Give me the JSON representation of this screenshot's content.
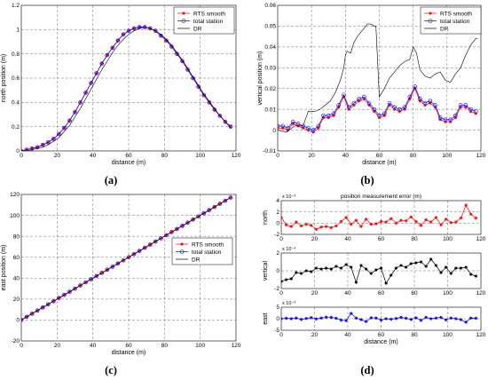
{
  "colors": {
    "rts": "#ff0000",
    "ts": "#0000ff",
    "dr": "#000000",
    "err_north": "#ff0000",
    "err_vertical": "#000000",
    "err_east": "#0000ff"
  },
  "legend_labels": {
    "rts": "RTS smooth",
    "ts": "total station",
    "dr": "DR"
  },
  "captions": {
    "a": "(a)",
    "b": "(b)",
    "c": "(c)",
    "d": "(d)"
  },
  "chart_data": [
    {
      "id": "a",
      "type": "line",
      "xlabel": "distance (m)",
      "ylabel": "north position (m)",
      "xlim": [
        0,
        120
      ],
      "ylim": [
        0,
        1.2
      ],
      "xticks": [
        0,
        20,
        40,
        60,
        80,
        100,
        120
      ],
      "yticks": [
        0,
        0.2,
        0.4,
        0.6,
        0.8,
        1,
        1.2
      ],
      "ytick_labels": [
        "0",
        "0.2",
        "0.4",
        "0.6",
        "0.8",
        "1",
        "1.2"
      ],
      "grid": true,
      "legend_position": "top-right",
      "x": [
        0,
        3,
        6,
        9,
        12,
        15,
        18,
        21,
        24,
        27,
        30,
        33,
        36,
        39,
        42,
        45,
        48,
        51,
        54,
        57,
        60,
        63,
        66,
        69,
        72,
        75,
        78,
        81,
        84,
        87,
        90,
        93,
        96,
        99,
        102,
        105,
        108,
        111,
        114,
        117
      ],
      "series": [
        {
          "key": "rts",
          "name": "RTS smooth",
          "marker": "star",
          "values": [
            0.0,
            0.01,
            0.02,
            0.03,
            0.05,
            0.07,
            0.1,
            0.14,
            0.19,
            0.25,
            0.32,
            0.4,
            0.48,
            0.56,
            0.64,
            0.72,
            0.79,
            0.85,
            0.91,
            0.96,
            0.99,
            1.01,
            1.02,
            1.02,
            1.01,
            0.99,
            0.95,
            0.91,
            0.86,
            0.8,
            0.74,
            0.67,
            0.6,
            0.53,
            0.46,
            0.4,
            0.34,
            0.29,
            0.24,
            0.2
          ]
        },
        {
          "key": "ts",
          "name": "total station",
          "marker": "circle",
          "values": [
            0.0,
            0.01,
            0.02,
            0.03,
            0.05,
            0.07,
            0.1,
            0.14,
            0.19,
            0.25,
            0.32,
            0.4,
            0.48,
            0.56,
            0.64,
            0.72,
            0.79,
            0.85,
            0.91,
            0.96,
            0.99,
            1.01,
            1.02,
            1.02,
            1.01,
            0.99,
            0.95,
            0.91,
            0.86,
            0.8,
            0.74,
            0.67,
            0.6,
            0.53,
            0.46,
            0.4,
            0.34,
            0.29,
            0.24,
            0.2
          ]
        },
        {
          "key": "dr",
          "name": "DR",
          "marker": "none",
          "values": [
            0.0,
            0.0,
            0.01,
            0.02,
            0.03,
            0.05,
            0.08,
            0.11,
            0.16,
            0.21,
            0.28,
            0.35,
            0.43,
            0.51,
            0.59,
            0.67,
            0.74,
            0.81,
            0.87,
            0.92,
            0.96,
            0.99,
            1.01,
            1.02,
            1.01,
            0.99,
            0.96,
            0.92,
            0.87,
            0.81,
            0.75,
            0.68,
            0.61,
            0.54,
            0.47,
            0.41,
            0.35,
            0.29,
            0.24,
            0.19
          ]
        }
      ]
    },
    {
      "id": "b",
      "type": "line",
      "xlabel": "distance (m)",
      "ylabel": "vertical position (m)",
      "xlim": [
        0,
        120
      ],
      "ylim": [
        -0.01,
        0.06
      ],
      "xticks": [
        0,
        20,
        40,
        60,
        80,
        100,
        120
      ],
      "yticks": [
        -0.01,
        0,
        0.01,
        0.02,
        0.03,
        0.04,
        0.05,
        0.06
      ],
      "ytick_labels": [
        "-0.01",
        "0",
        "0.01",
        "0.02",
        "0.03",
        "0.04",
        "0.05",
        "0.06"
      ],
      "grid": true,
      "legend_position": "top-right",
      "x": [
        0,
        3,
        6,
        9,
        12,
        15,
        18,
        21,
        24,
        27,
        30,
        33,
        36,
        39,
        42,
        45,
        48,
        51,
        54,
        57,
        60,
        63,
        66,
        69,
        72,
        75,
        78,
        81,
        84,
        87,
        90,
        93,
        96,
        99,
        102,
        105,
        108,
        111,
        114,
        117
      ],
      "series": [
        {
          "key": "rts",
          "name": "RTS smooth",
          "marker": "star",
          "values": [
            0.001,
            0.001,
            0.0,
            0.003,
            0.002,
            0.001,
            0.0,
            -0.001,
            0.001,
            0.006,
            0.006,
            0.007,
            0.011,
            0.016,
            0.01,
            0.012,
            0.014,
            0.015,
            0.012,
            0.009,
            0.006,
            0.007,
            0.012,
            0.01,
            0.009,
            0.01,
            0.015,
            0.02,
            0.014,
            0.012,
            0.013,
            0.011,
            0.005,
            0.004,
            0.004,
            0.006,
            0.011,
            0.011,
            0.009,
            0.008
          ]
        },
        {
          "key": "ts",
          "name": "total station",
          "marker": "circle",
          "values": [
            0.002,
            0.002,
            0.001,
            0.004,
            0.003,
            0.002,
            0.001,
            0.0,
            0.002,
            0.007,
            0.007,
            0.008,
            0.012,
            0.017,
            0.011,
            0.013,
            0.015,
            0.016,
            0.013,
            0.01,
            0.007,
            0.008,
            0.013,
            0.011,
            0.01,
            0.011,
            0.016,
            0.021,
            0.015,
            0.013,
            0.014,
            0.012,
            0.006,
            0.005,
            0.005,
            0.007,
            0.012,
            0.012,
            0.01,
            0.009
          ]
        },
        {
          "key": "dr",
          "name": "DR",
          "marker": "none",
          "x": [
            0,
            5,
            10,
            15,
            18,
            22,
            25,
            28,
            31,
            34,
            37,
            39,
            40,
            41,
            43,
            45,
            47,
            49,
            51,
            53,
            55,
            57,
            58,
            60,
            63,
            66,
            69,
            72,
            75,
            78,
            80,
            82,
            84,
            87,
            90,
            93,
            96,
            99,
            102,
            105,
            108,
            111,
            114,
            117,
            118
          ],
          "values": [
            0.0,
            -0.001,
            0.002,
            0.002,
            0.009,
            0.009,
            0.01,
            0.012,
            0.014,
            0.018,
            0.024,
            0.03,
            0.036,
            0.038,
            0.037,
            0.042,
            0.045,
            0.047,
            0.049,
            0.051,
            0.051,
            0.05,
            0.05,
            0.016,
            0.02,
            0.025,
            0.028,
            0.031,
            0.033,
            0.034,
            0.04,
            0.037,
            0.029,
            0.026,
            0.025,
            0.027,
            0.028,
            0.024,
            0.023,
            0.027,
            0.03,
            0.036,
            0.041,
            0.044,
            0.044
          ]
        }
      ]
    },
    {
      "id": "c",
      "type": "line",
      "xlabel": "distance (m)",
      "ylabel": "east position (m)",
      "xlim": [
        0,
        120
      ],
      "ylim": [
        -20,
        120
      ],
      "xticks": [
        0,
        20,
        40,
        60,
        80,
        100,
        120
      ],
      "yticks": [
        -20,
        0,
        20,
        40,
        60,
        80,
        100,
        120
      ],
      "ytick_labels": [
        "-20",
        "0",
        "20",
        "40",
        "60",
        "80",
        "100",
        "120"
      ],
      "grid": true,
      "legend_position": "center-right",
      "x": [
        0,
        3,
        6,
        9,
        12,
        15,
        18,
        21,
        24,
        27,
        30,
        33,
        36,
        39,
        42,
        45,
        48,
        51,
        54,
        57,
        60,
        63,
        66,
        69,
        72,
        75,
        78,
        81,
        84,
        87,
        90,
        93,
        96,
        99,
        102,
        105,
        108,
        111,
        114,
        117
      ],
      "series": [
        {
          "key": "rts",
          "name": "RTS smooth",
          "marker": "star",
          "values": [
            0,
            3,
            6,
            9,
            12,
            15,
            18,
            21,
            24,
            27,
            30,
            33,
            36,
            39,
            42,
            45,
            48,
            51,
            54,
            57,
            60,
            63,
            66,
            69,
            72,
            75,
            78,
            81,
            84,
            87,
            90,
            93,
            96,
            99,
            102,
            105,
            108,
            111,
            114,
            117
          ]
        },
        {
          "key": "ts",
          "name": "total station",
          "marker": "circle",
          "values": [
            0,
            3,
            6,
            9,
            12,
            15,
            18,
            21,
            24,
            27,
            30,
            33,
            36,
            39,
            42,
            45,
            48,
            51,
            54,
            57,
            60,
            63,
            66,
            69,
            72,
            75,
            78,
            81,
            84,
            87,
            90,
            93,
            96,
            99,
            102,
            105,
            108,
            111,
            114,
            117
          ]
        },
        {
          "key": "dr",
          "name": "DR",
          "marker": "none",
          "values": [
            0,
            3,
            6,
            9,
            12,
            15,
            18,
            21,
            24,
            27,
            30,
            33,
            36,
            39,
            42,
            45,
            48,
            51,
            54,
            57,
            60,
            63,
            66,
            69,
            72,
            75,
            78,
            81,
            84,
            87,
            90,
            93,
            96,
            99,
            102,
            105,
            108,
            111,
            114,
            117
          ]
        }
      ]
    },
    {
      "id": "d1",
      "type": "line",
      "title": "position measurement error (m)",
      "ylabel": "north",
      "exponent": "x 10⁻³",
      "xlim": [
        0,
        120
      ],
      "ylim": [
        -2,
        4
      ],
      "xticks": [
        0,
        20,
        40,
        60,
        80,
        100,
        120
      ],
      "yticks": [
        -2,
        0,
        2,
        4
      ],
      "ytick_labels": [
        "-2",
        "0",
        "2",
        "4"
      ],
      "grid": true,
      "color_key": "err_north",
      "x": [
        0,
        3,
        6,
        9,
        12,
        15,
        18,
        21,
        24,
        27,
        30,
        33,
        36,
        39,
        42,
        45,
        48,
        51,
        54,
        57,
        60,
        63,
        66,
        69,
        72,
        75,
        78,
        81,
        84,
        87,
        90,
        93,
        96,
        99,
        102,
        105,
        108,
        111,
        114,
        117
      ],
      "series": [
        {
          "name": "",
          "marker": "star",
          "values": [
            1.0,
            -0.3,
            -0.6,
            0.2,
            -0.5,
            -0.2,
            -0.4,
            -1.1,
            -0.7,
            -0.6,
            -0.8,
            -0.5,
            0.3,
            1.0,
            -0.2,
            0.5,
            -0.6,
            0.7,
            -0.2,
            -0.1,
            0.3,
            0.2,
            0.8,
            0.0,
            0.5,
            0.4,
            1.1,
            0.3,
            -0.4,
            0.6,
            0.2,
            1.0,
            -0.3,
            0.7,
            0.1,
            0.2,
            0.9,
            3.2,
            1.6,
            0.9
          ]
        }
      ]
    },
    {
      "id": "d2",
      "type": "line",
      "ylabel": "vertical",
      "exponent": "x 10⁻³",
      "xlim": [
        0,
        120
      ],
      "ylim": [
        -2,
        2
      ],
      "xticks": [
        0,
        20,
        40,
        60,
        80,
        100,
        120
      ],
      "yticks": [
        -2,
        0,
        2
      ],
      "ytick_labels": [
        "-2",
        "0",
        "2"
      ],
      "grid": true,
      "color_key": "err_vertical",
      "x": [
        0,
        3,
        6,
        9,
        12,
        15,
        18,
        21,
        24,
        27,
        30,
        33,
        36,
        39,
        42,
        45,
        48,
        51,
        54,
        57,
        60,
        63,
        66,
        69,
        72,
        75,
        78,
        81,
        84,
        87,
        90,
        93,
        96,
        99,
        102,
        105,
        108,
        111,
        114,
        117
      ],
      "series": [
        {
          "name": "",
          "marker": "star",
          "values": [
            -1.2,
            -1.0,
            -0.9,
            -0.2,
            -0.3,
            0.0,
            -0.1,
            0.3,
            0.2,
            0.3,
            0.2,
            0.5,
            0.3,
            0.7,
            0.4,
            -1.3,
            0.6,
            0.2,
            -0.3,
            0.1,
            0.3,
            -1.4,
            -0.5,
            0.3,
            0.6,
            0.4,
            0.8,
            0.9,
            1.0,
            0.5,
            1.3,
            0.6,
            -0.2,
            0.4,
            -0.3,
            0.3,
            0.3,
            0.4,
            -0.4,
            -0.6
          ]
        }
      ]
    },
    {
      "id": "d3",
      "type": "line",
      "ylabel": "east",
      "exponent": "x 10⁻³",
      "xlim": [
        0,
        120
      ],
      "ylim": [
        -5,
        5
      ],
      "xticks": [
        0,
        20,
        40,
        60,
        80,
        100,
        120
      ],
      "xtick_labels": [
        "0",
        "20",
        "40",
        "60",
        "80",
        "100",
        "120"
      ],
      "yticks": [
        -5,
        0,
        5
      ],
      "ytick_labels": [
        "-5",
        "0",
        "5"
      ],
      "xlabel": "distance (m)",
      "grid": true,
      "color_key": "err_east",
      "x": [
        0,
        3,
        6,
        9,
        12,
        15,
        18,
        21,
        24,
        27,
        30,
        33,
        36,
        39,
        42,
        45,
        48,
        51,
        54,
        57,
        60,
        63,
        66,
        69,
        72,
        75,
        78,
        81,
        84,
        87,
        90,
        93,
        96,
        99,
        102,
        105,
        108,
        111,
        114,
        117
      ],
      "series": [
        {
          "name": "",
          "marker": "star",
          "values": [
            0.0,
            0.2,
            0.0,
            0.3,
            -0.3,
            0.1,
            0.5,
            -0.1,
            0.3,
            0.7,
            0.6,
            0.2,
            -0.6,
            -0.8,
            2.3,
            0.3,
            -0.4,
            -1.2,
            0.4,
            0.3,
            -0.6,
            0.0,
            -0.2,
            0.1,
            0.6,
            0.2,
            -0.3,
            0.4,
            -0.7,
            0.6,
            0.0,
            0.3,
            0.6,
            -0.5,
            0.3,
            0.0,
            -0.4,
            -1.5,
            0.3,
            0.2
          ]
        }
      ]
    }
  ]
}
